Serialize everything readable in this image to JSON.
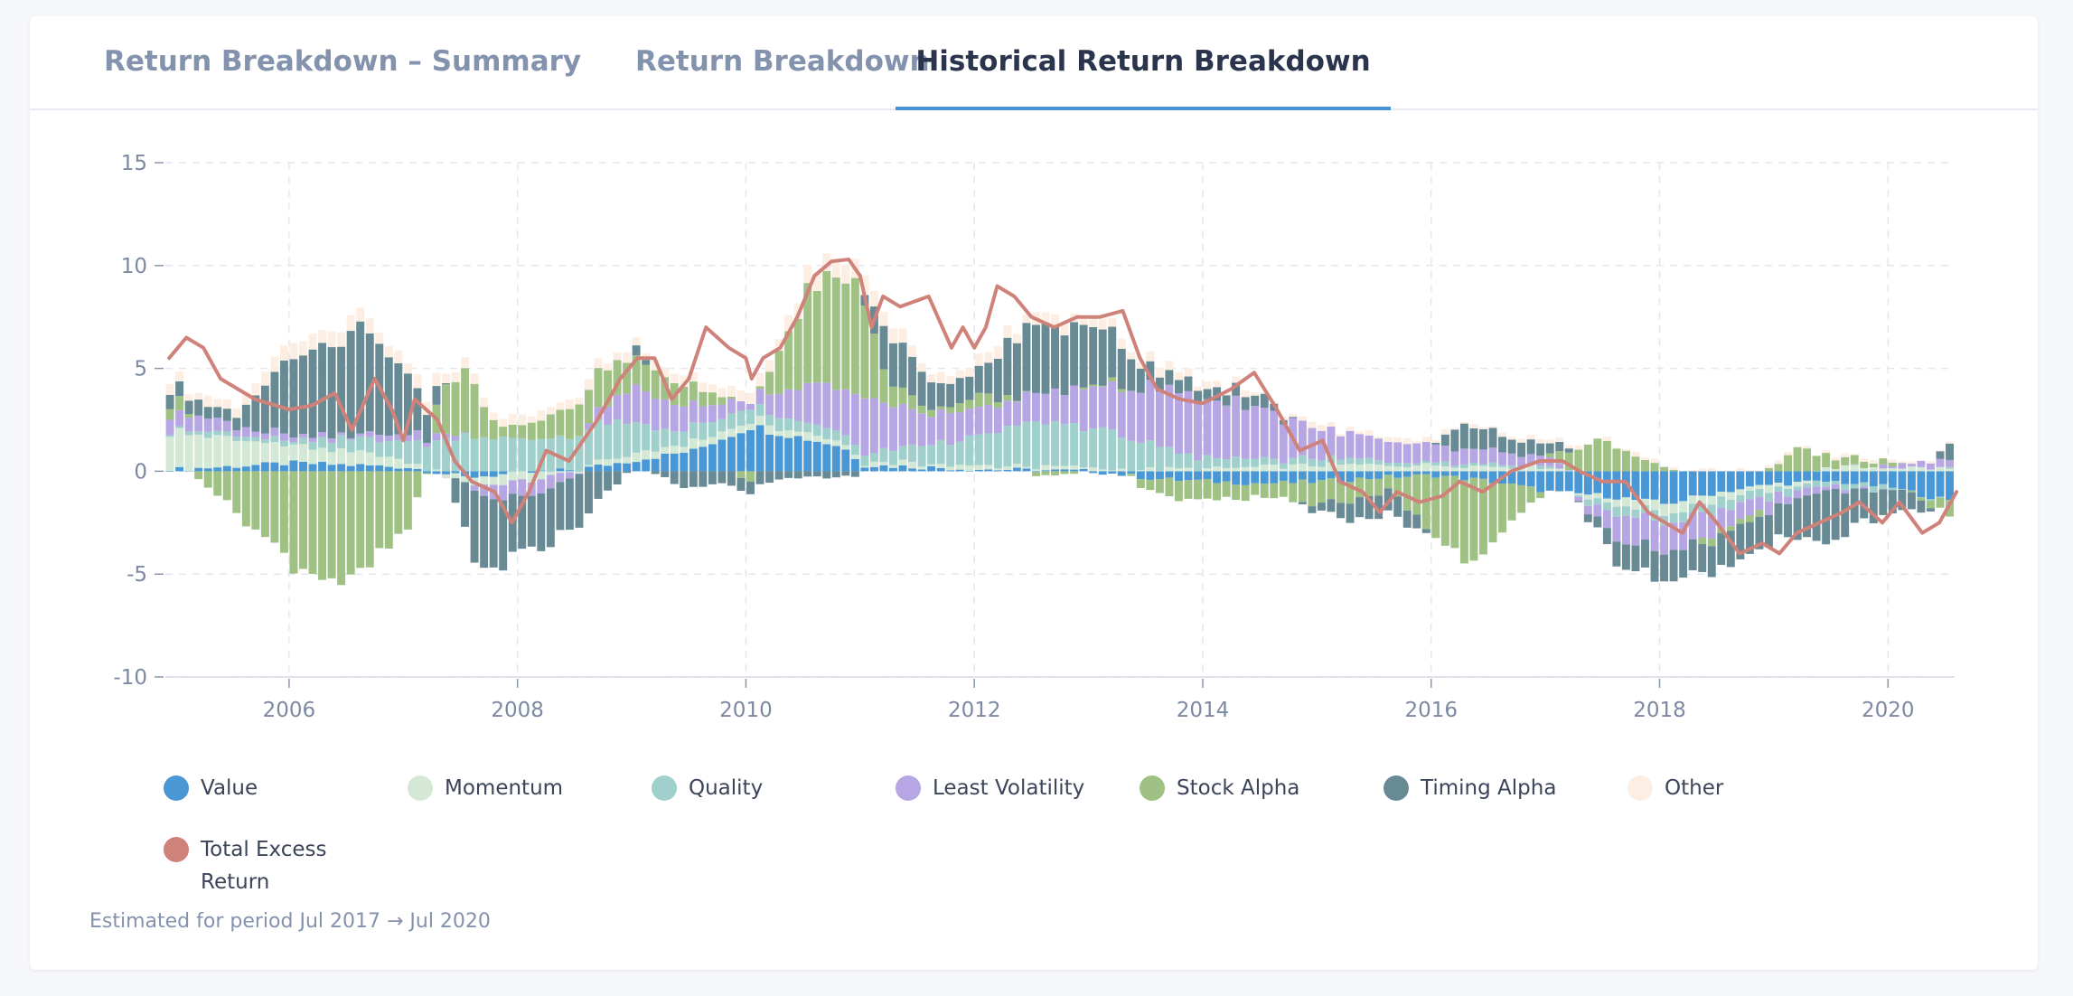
{
  "tabs": [
    {
      "label": "Return Breakdown – Summary",
      "active": false
    },
    {
      "label": "Return Breakdown",
      "active": false
    },
    {
      "label": "Historical Return Breakdown",
      "active": true
    }
  ],
  "legend": [
    {
      "label": "Value",
      "color": "#4a97d6"
    },
    {
      "label": "Momentum",
      "color": "#d3e8d5"
    },
    {
      "label": "Quality",
      "color": "#9fd0cb"
    },
    {
      "label": "Least Volatility",
      "color": "#b6a6e3"
    },
    {
      "label": "Stock Alpha",
      "color": "#9fc183"
    },
    {
      "label": "Timing Alpha",
      "color": "#678a94"
    },
    {
      "label": "Other",
      "color": "#fdeee4"
    },
    {
      "label": "Total Excess Return",
      "color": "#cf8279"
    }
  ],
  "note": "Estimated for period Jul 2017 → Jul 2020",
  "chart_data": {
    "type": "bar",
    "stacked": true,
    "frequency": "monthly",
    "x_range": [
      "2004-12",
      "2020-08"
    ],
    "ylim": [
      -10,
      15
    ],
    "yticks": [
      15,
      10,
      5,
      0,
      -5,
      -10
    ],
    "xticks": [
      "2006",
      "2008",
      "2010",
      "2012",
      "2014",
      "2016",
      "2018",
      "2020"
    ],
    "grid": true,
    "legend_position": "bottom",
    "series": [
      {
        "name": "Value",
        "color": "#4a97d6",
        "knots": [
          [
            2005.0,
            0.1
          ],
          [
            2006.0,
            0.4
          ],
          [
            2007.0,
            0.2
          ],
          [
            2007.5,
            -0.3
          ],
          [
            2008.5,
            0.1
          ],
          [
            2009.5,
            1.0
          ],
          [
            2010.0,
            2.2
          ],
          [
            2010.8,
            1.2
          ],
          [
            2011.0,
            0.3
          ],
          [
            2012.0,
            0.1
          ],
          [
            2013.0,
            0.0
          ],
          [
            2013.6,
            -0.4
          ],
          [
            2014.5,
            -0.6
          ],
          [
            2015.0,
            -0.5
          ],
          [
            2015.5,
            -0.3
          ],
          [
            2016.0,
            -0.2
          ],
          [
            2016.5,
            -0.5
          ],
          [
            2017.0,
            -1.0
          ],
          [
            2017.5,
            -1.2
          ],
          [
            2018.0,
            -1.6
          ],
          [
            2018.5,
            -1.0
          ],
          [
            2019.0,
            -0.6
          ],
          [
            2019.5,
            -0.5
          ],
          [
            2020.0,
            -0.8
          ],
          [
            2020.6,
            -1.6
          ]
        ]
      },
      {
        "name": "Momentum",
        "color": "#d3e8d5",
        "knots": [
          [
            2005.0,
            1.8
          ],
          [
            2006.0,
            0.8
          ],
          [
            2006.8,
            0.5
          ],
          [
            2007.5,
            -0.3
          ],
          [
            2008.0,
            -0.5
          ],
          [
            2008.8,
            0.3
          ],
          [
            2009.5,
            0.4
          ],
          [
            2010.5,
            0.3
          ],
          [
            2011.0,
            0.2
          ],
          [
            2012.0,
            0.2
          ],
          [
            2013.0,
            0.1
          ],
          [
            2014.0,
            0.1
          ],
          [
            2015.0,
            0.3
          ],
          [
            2016.0,
            0.3
          ],
          [
            2017.0,
            0.2
          ],
          [
            2017.5,
            -0.3
          ],
          [
            2018.0,
            -0.5
          ],
          [
            2018.5,
            -0.3
          ],
          [
            2019.0,
            -0.3
          ],
          [
            2019.5,
            0.2
          ],
          [
            2020.0,
            0.2
          ],
          [
            2020.6,
            0.1
          ]
        ]
      },
      {
        "name": "Quality",
        "color": "#9fd0cb",
        "knots": [
          [
            2005.0,
            0.2
          ],
          [
            2006.0,
            0.2
          ],
          [
            2007.0,
            1.0
          ],
          [
            2007.5,
            1.8
          ],
          [
            2008.0,
            1.5
          ],
          [
            2008.8,
            1.8
          ],
          [
            2009.3,
            0.8
          ],
          [
            2010.0,
            0.6
          ],
          [
            2011.0,
            0.4
          ],
          [
            2012.0,
            1.4
          ],
          [
            2012.5,
            2.2
          ],
          [
            2013.2,
            1.8
          ],
          [
            2013.8,
            0.6
          ],
          [
            2014.5,
            0.4
          ],
          [
            2015.0,
            0.3
          ],
          [
            2016.0,
            0.2
          ],
          [
            2017.0,
            0.1
          ],
          [
            2017.5,
            -0.4
          ],
          [
            2018.0,
            -0.5
          ],
          [
            2018.5,
            -0.5
          ],
          [
            2019.0,
            -0.3
          ],
          [
            2020.0,
            -0.2
          ],
          [
            2020.6,
            0.1
          ]
        ]
      },
      {
        "name": "Least Volatility",
        "color": "#b6a6e3",
        "knots": [
          [
            2005.0,
            0.8
          ],
          [
            2005.5,
            0.4
          ],
          [
            2006.5,
            0.2
          ],
          [
            2007.0,
            0.4
          ],
          [
            2007.4,
            0.2
          ],
          [
            2007.8,
            -0.8
          ],
          [
            2008.3,
            -0.6
          ],
          [
            2009.0,
            1.8
          ],
          [
            2009.5,
            1.0
          ],
          [
            2010.0,
            0.4
          ],
          [
            2010.5,
            1.8
          ],
          [
            2011.0,
            2.6
          ],
          [
            2011.5,
            1.6
          ],
          [
            2012.2,
            1.2
          ],
          [
            2012.8,
            1.6
          ],
          [
            2013.2,
            2.4
          ],
          [
            2013.8,
            3.0
          ],
          [
            2014.4,
            2.6
          ],
          [
            2015.0,
            1.4
          ],
          [
            2015.5,
            1.0
          ],
          [
            2016.0,
            0.8
          ],
          [
            2016.5,
            0.6
          ],
          [
            2017.0,
            0.4
          ],
          [
            2017.6,
            -1.2
          ],
          [
            2018.0,
            -1.5
          ],
          [
            2018.5,
            -1.0
          ],
          [
            2019.0,
            -0.5
          ],
          [
            2019.5,
            -0.2
          ],
          [
            2020.0,
            0.2
          ],
          [
            2020.6,
            0.4
          ]
        ]
      },
      {
        "name": "Stock Alpha",
        "color": "#9fc183",
        "knots": [
          [
            2005.0,
            0.6
          ],
          [
            2005.5,
            -2.0
          ],
          [
            2006.0,
            -4.5
          ],
          [
            2006.5,
            -5.5
          ],
          [
            2007.0,
            -2.8
          ],
          [
            2007.3,
            2.2
          ],
          [
            2007.5,
            3.2
          ],
          [
            2007.8,
            0.4
          ],
          [
            2008.2,
            1.0
          ],
          [
            2008.6,
            1.8
          ],
          [
            2009.0,
            1.5
          ],
          [
            2009.6,
            0.8
          ],
          [
            2010.0,
            -0.6
          ],
          [
            2010.5,
            4.5
          ],
          [
            2010.9,
            5.8
          ],
          [
            2011.2,
            1.2
          ],
          [
            2011.6,
            0.2
          ],
          [
            2012.0,
            0.6
          ],
          [
            2012.5,
            -0.2
          ],
          [
            2013.2,
            0.2
          ],
          [
            2013.6,
            -0.8
          ],
          [
            2014.0,
            -1.0
          ],
          [
            2014.5,
            -0.6
          ],
          [
            2015.0,
            -1.2
          ],
          [
            2015.6,
            -0.6
          ],
          [
            2016.0,
            -3.0
          ],
          [
            2016.3,
            -4.5
          ],
          [
            2016.7,
            -1.5
          ],
          [
            2017.0,
            0.2
          ],
          [
            2017.4,
            1.6
          ],
          [
            2017.8,
            0.6
          ],
          [
            2018.3,
            -0.2
          ],
          [
            2018.8,
            -0.4
          ],
          [
            2019.2,
            1.2
          ],
          [
            2019.5,
            0.4
          ],
          [
            2020.0,
            0.2
          ],
          [
            2020.6,
            -0.9
          ]
        ]
      },
      {
        "name": "Timing Alpha",
        "color": "#678a94",
        "knots": [
          [
            2005.0,
            0.8
          ],
          [
            2005.5,
            0.5
          ],
          [
            2006.0,
            3.8
          ],
          [
            2006.6,
            5.0
          ],
          [
            2007.0,
            2.8
          ],
          [
            2007.3,
            0.4
          ],
          [
            2007.6,
            -3.8
          ],
          [
            2008.0,
            -2.8
          ],
          [
            2008.5,
            -2.4
          ],
          [
            2009.0,
            0.4
          ],
          [
            2009.4,
            -0.8
          ],
          [
            2009.8,
            -0.6
          ],
          [
            2010.4,
            -0.4
          ],
          [
            2010.9,
            -0.3
          ],
          [
            2011.2,
            2.4
          ],
          [
            2011.6,
            1.2
          ],
          [
            2012.0,
            1.2
          ],
          [
            2012.4,
            3.4
          ],
          [
            2013.0,
            3.0
          ],
          [
            2013.5,
            0.8
          ],
          [
            2014.0,
            0.6
          ],
          [
            2014.5,
            0.6
          ],
          [
            2015.0,
            -0.4
          ],
          [
            2015.4,
            -1.2
          ],
          [
            2015.8,
            -0.8
          ],
          [
            2016.2,
            1.2
          ],
          [
            2016.6,
            0.8
          ],
          [
            2017.0,
            0.6
          ],
          [
            2017.6,
            -1.2
          ],
          [
            2018.0,
            -1.4
          ],
          [
            2018.6,
            -1.6
          ],
          [
            2019.0,
            -1.5
          ],
          [
            2019.4,
            -2.6
          ],
          [
            2019.8,
            -1.4
          ],
          [
            2020.2,
            -0.8
          ],
          [
            2020.6,
            1.2
          ]
        ]
      },
      {
        "name": "Other",
        "color": "#fdeee4",
        "knots": [
          [
            2005.0,
            0.4
          ],
          [
            2006.0,
            0.7
          ],
          [
            2007.0,
            0.6
          ],
          [
            2008.0,
            0.4
          ],
          [
            2009.0,
            0.4
          ],
          [
            2010.0,
            0.5
          ],
          [
            2010.8,
            1.0
          ],
          [
            2011.5,
            0.5
          ],
          [
            2012.5,
            0.5
          ],
          [
            2013.5,
            0.4
          ],
          [
            2014.5,
            0.2
          ],
          [
            2016.0,
            0.2
          ],
          [
            2018.0,
            0.1
          ],
          [
            2020.0,
            0.1
          ],
          [
            2020.6,
            0.1
          ]
        ]
      }
    ],
    "total_excess_return": {
      "name": "Total Excess Return",
      "color": "#cf8279",
      "knots": [
        [
          2004.95,
          5.5
        ],
        [
          2005.1,
          6.5
        ],
        [
          2005.25,
          6.0
        ],
        [
          2005.4,
          4.5
        ],
        [
          2005.7,
          3.5
        ],
        [
          2006.0,
          3.0
        ],
        [
          2006.2,
          3.2
        ],
        [
          2006.4,
          3.8
        ],
        [
          2006.55,
          2.0
        ],
        [
          2006.75,
          4.5
        ],
        [
          2006.9,
          3.0
        ],
        [
          2007.0,
          1.5
        ],
        [
          2007.1,
          3.5
        ],
        [
          2007.3,
          2.5
        ],
        [
          2007.45,
          0.5
        ],
        [
          2007.6,
          -0.5
        ],
        [
          2007.8,
          -1.0
        ],
        [
          2007.95,
          -2.5
        ],
        [
          2008.1,
          -1.0
        ],
        [
          2008.25,
          1.0
        ],
        [
          2008.45,
          0.5
        ],
        [
          2008.7,
          2.5
        ],
        [
          2008.9,
          4.5
        ],
        [
          2009.05,
          5.5
        ],
        [
          2009.2,
          5.5
        ],
        [
          2009.35,
          3.5
        ],
        [
          2009.5,
          4.5
        ],
        [
          2009.65,
          7.0
        ],
        [
          2009.85,
          6.0
        ],
        [
          2010.0,
          5.5
        ],
        [
          2010.05,
          4.5
        ],
        [
          2010.15,
          5.5
        ],
        [
          2010.3,
          6.0
        ],
        [
          2010.45,
          7.5
        ],
        [
          2010.6,
          9.5
        ],
        [
          2010.75,
          10.2
        ],
        [
          2010.9,
          10.3
        ],
        [
          2011.0,
          9.5
        ],
        [
          2011.1,
          7.0
        ],
        [
          2011.2,
          8.5
        ],
        [
          2011.35,
          8.0
        ],
        [
          2011.6,
          8.5
        ],
        [
          2011.8,
          6.0
        ],
        [
          2011.9,
          7.0
        ],
        [
          2012.0,
          6.0
        ],
        [
          2012.1,
          7.0
        ],
        [
          2012.2,
          9.0
        ],
        [
          2012.35,
          8.5
        ],
        [
          2012.5,
          7.5
        ],
        [
          2012.7,
          7.0
        ],
        [
          2012.9,
          7.5
        ],
        [
          2013.1,
          7.5
        ],
        [
          2013.3,
          7.8
        ],
        [
          2013.45,
          5.5
        ],
        [
          2013.6,
          4.0
        ],
        [
          2013.8,
          3.5
        ],
        [
          2014.0,
          3.3
        ],
        [
          2014.25,
          4.0
        ],
        [
          2014.45,
          4.8
        ],
        [
          2014.65,
          3.0
        ],
        [
          2014.85,
          1.0
        ],
        [
          2015.05,
          1.5
        ],
        [
          2015.2,
          -0.5
        ],
        [
          2015.4,
          -1.0
        ],
        [
          2015.55,
          -2.0
        ],
        [
          2015.7,
          -1.0
        ],
        [
          2015.9,
          -1.5
        ],
        [
          2016.1,
          -1.2
        ],
        [
          2016.25,
          -0.5
        ],
        [
          2016.45,
          -1.0
        ],
        [
          2016.7,
          0.0
        ],
        [
          2016.95,
          0.5
        ],
        [
          2017.15,
          0.5
        ],
        [
          2017.3,
          0.0
        ],
        [
          2017.5,
          -0.5
        ],
        [
          2017.7,
          -0.5
        ],
        [
          2017.9,
          -2.0
        ],
        [
          2018.05,
          -2.5
        ],
        [
          2018.2,
          -3.0
        ],
        [
          2018.35,
          -1.5
        ],
        [
          2018.5,
          -2.5
        ],
        [
          2018.7,
          -4.0
        ],
        [
          2018.9,
          -3.5
        ],
        [
          2019.05,
          -4.0
        ],
        [
          2019.2,
          -3.0
        ],
        [
          2019.4,
          -2.5
        ],
        [
          2019.6,
          -2.0
        ],
        [
          2019.75,
          -1.5
        ],
        [
          2019.95,
          -2.5
        ],
        [
          2020.1,
          -1.5
        ],
        [
          2020.3,
          -3.0
        ],
        [
          2020.45,
          -2.5
        ],
        [
          2020.6,
          -1.0
        ]
      ]
    }
  }
}
